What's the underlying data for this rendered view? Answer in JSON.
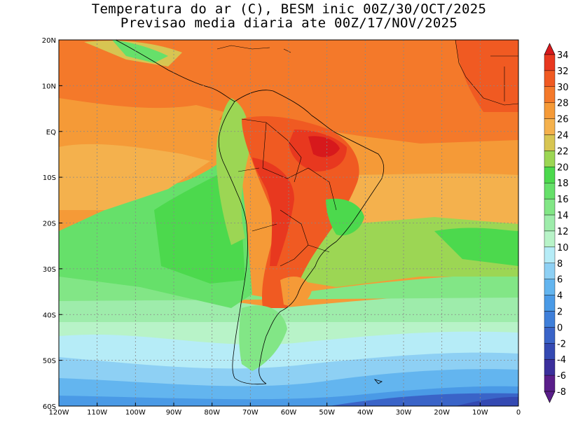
{
  "title": {
    "line1": "Temperatura do ar (C), BESM inic 00Z/30/OCT/2025",
    "line2": "Previsao media diaria ate 00Z/17/NOV/2025"
  },
  "map": {
    "lon_range": [
      -120,
      0
    ],
    "lat_range": [
      -60,
      20
    ],
    "lon_ticks": [
      "120W",
      "110W",
      "100W",
      "90W",
      "80W",
      "70W",
      "60W",
      "50W",
      "40W",
      "30W",
      "20W",
      "10W",
      "0"
    ],
    "lat_ticks": [
      "20N",
      "10N",
      "EQ",
      "10S",
      "20S",
      "30S",
      "40S",
      "50S",
      "60S"
    ],
    "gridlines": "dotted"
  },
  "colorbar": {
    "labels": [
      "34",
      "32",
      "30",
      "28",
      "26",
      "24",
      "22",
      "20",
      "18",
      "16",
      "14",
      "12",
      "10",
      "8",
      "6",
      "4",
      "2",
      "0",
      "-2",
      "-4",
      "-6",
      "-8"
    ],
    "colors": {
      "34": "#d7191c",
      "32": "#e8381f",
      "30": "#f05a22",
      "28": "#f4792a",
      "26": "#f59a37",
      "24": "#f4b14d",
      "22": "#d7c552",
      "20": "#9cd654",
      "18": "#4cd94d",
      "16": "#66e06a",
      "14": "#82e686",
      "12": "#9eecab",
      "10": "#b8f3c8",
      "8": "#b6ecf7",
      "6": "#8ed0f4",
      "4": "#63b5ef",
      "2": "#4a9ae6",
      "0": "#3f7fd9",
      "-2": "#3a64c8",
      "-4": "#3449b2",
      "-6": "#3b2f9c",
      "-8": "#5a1e8a"
    }
  },
  "zones": [
    {
      "name": "zone-north-atlantic-warm",
      "value": 28,
      "color": "#f4792a"
    },
    {
      "name": "zone-amazon-hot",
      "value": 32,
      "color": "#e8381f"
    },
    {
      "name": "zone-pacific-tropical",
      "value": 26,
      "color": "#f59a37"
    },
    {
      "name": "zone-southeast-pacific",
      "value": 18,
      "color": "#4cd94d"
    },
    {
      "name": "zone-south-atlantic-mid",
      "value": 22,
      "color": "#d7c552"
    },
    {
      "name": "zone-southern-ocean-cool",
      "value": 12,
      "color": "#9eecab"
    },
    {
      "name": "zone-southern-ocean-cold",
      "value": 4,
      "color": "#63b5ef"
    },
    {
      "name": "zone-antarctic-edge",
      "value": -4,
      "color": "#3449b2"
    }
  ]
}
